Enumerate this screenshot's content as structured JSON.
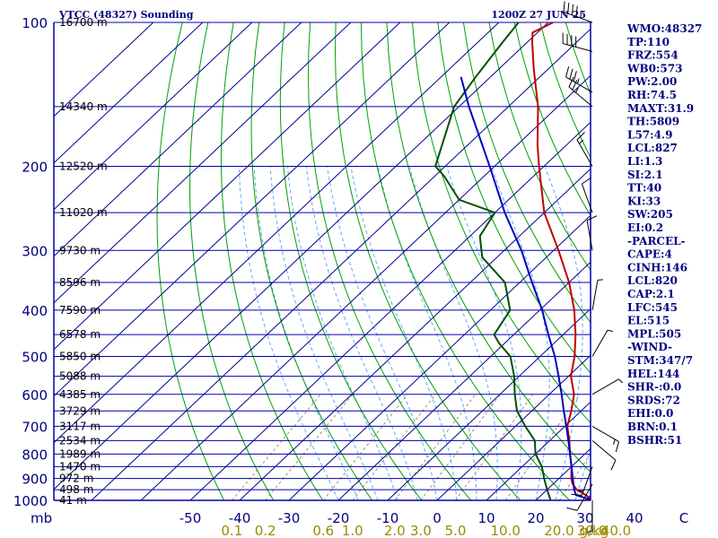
{
  "header": {
    "title": "VTCC (48327) Sounding",
    "datetime": "1200Z 27 JUN 25"
  },
  "colors": {
    "isobar": "#0000a8",
    "isotherm": "#00008c",
    "dry_adiabat": "#00a000",
    "moist_adiabat": "#5fa8ff",
    "mixing_ratio": "#a08e6e",
    "temperature": "#c00000",
    "dewpoint": "#005000",
    "parcel": "#0000c0",
    "label_yellow": "#9a8a00",
    "text_blue": "#000080"
  },
  "chart_data": {
    "type": "line",
    "kind": "skew-T log-P sounding",
    "pressure_levels": [
      {
        "p": 100,
        "height": "16700 m"
      },
      {
        "p": 150,
        "height": "14340 m"
      },
      {
        "p": 200,
        "height": "12520 m"
      },
      {
        "p": 250,
        "height": "11020 m"
      },
      {
        "p": 300,
        "height": "9730 m"
      },
      {
        "p": 350,
        "height": "8596 m"
      },
      {
        "p": 400,
        "height": "7590 m"
      },
      {
        "p": 450,
        "height": "6578 m"
      },
      {
        "p": 500,
        "height": "5850 m"
      },
      {
        "p": 550,
        "height": "5088 m"
      },
      {
        "p": 600,
        "height": "4385 m"
      },
      {
        "p": 650,
        "height": "3729 m"
      },
      {
        "p": 700,
        "height": "3117 m"
      },
      {
        "p": 750,
        "height": "2534 m"
      },
      {
        "p": 800,
        "height": "1989 m"
      },
      {
        "p": 850,
        "height": "1470 m"
      },
      {
        "p": 900,
        "height": "972 m"
      },
      {
        "p": 950,
        "height": "498 m"
      },
      {
        "p": 1000,
        "height": "41 m"
      }
    ],
    "pressure_axis_labels": [
      "100",
      "200",
      "300",
      "400",
      "500",
      "600",
      "700",
      "800",
      "900",
      "1000"
    ],
    "x_axis_prefix": "mb",
    "temperature_ticks": [
      "-50",
      "-40",
      "-30",
      "-20",
      "-10",
      "0",
      "10",
      "20",
      "30",
      "40",
      "C"
    ],
    "mixing_ratio_ticks": [
      "0.1",
      "0.2",
      "0.6",
      "1.0",
      "2.0",
      "3.0",
      "5.0",
      "10.0",
      "20.0",
      "30.0",
      "40.0",
      "g/kg"
    ],
    "mixing_ratio_values": [
      0.1,
      0.2,
      0.6,
      1.0,
      2.0,
      3.0,
      5.0,
      10.0,
      20.0,
      30.0,
      40.0
    ],
    "series": [
      {
        "name": "temperature",
        "points": [
          [
            1000,
            31.5
          ],
          [
            975,
            29
          ],
          [
            950,
            26
          ],
          [
            925,
            24
          ],
          [
            900,
            22.5
          ],
          [
            850,
            20
          ],
          [
            800,
            17
          ],
          [
            750,
            14
          ],
          [
            700,
            10.5
          ],
          [
            650,
            8
          ],
          [
            600,
            5
          ],
          [
            550,
            0.5
          ],
          [
            500,
            -3
          ],
          [
            450,
            -7.5
          ],
          [
            400,
            -13
          ],
          [
            350,
            -20
          ],
          [
            300,
            -29
          ],
          [
            250,
            -40
          ],
          [
            200,
            -51
          ],
          [
            180,
            -56
          ],
          [
            150,
            -64
          ],
          [
            125,
            -73
          ],
          [
            110,
            -79
          ],
          [
            105,
            -81
          ],
          [
            100,
            -79
          ]
        ]
      },
      {
        "name": "dewpoint",
        "points": [
          [
            1000,
            23
          ],
          [
            950,
            20
          ],
          [
            900,
            17
          ],
          [
            850,
            14
          ],
          [
            800,
            10
          ],
          [
            750,
            7
          ],
          [
            700,
            2
          ],
          [
            650,
            -3
          ],
          [
            600,
            -7
          ],
          [
            550,
            -11
          ],
          [
            500,
            -16
          ],
          [
            470,
            -21
          ],
          [
            450,
            -24
          ],
          [
            400,
            -26
          ],
          [
            350,
            -33
          ],
          [
            310,
            -43
          ],
          [
            280,
            -48
          ],
          [
            250,
            -50
          ],
          [
            235,
            -60
          ],
          [
            210,
            -68
          ],
          [
            200,
            -72
          ],
          [
            150,
            -81
          ],
          [
            130,
            -83
          ],
          [
            110,
            -85
          ],
          [
            100,
            -86
          ]
        ]
      },
      {
        "name": "parcel",
        "points": [
          [
            1000,
            31.5
          ],
          [
            975,
            27
          ],
          [
            950,
            25.5
          ],
          [
            900,
            22.8
          ],
          [
            850,
            20
          ],
          [
            800,
            17
          ],
          [
            750,
            13.8
          ],
          [
            700,
            10.3
          ],
          [
            650,
            6.5
          ],
          [
            600,
            2.5
          ],
          [
            550,
            -2
          ],
          [
            500,
            -7
          ],
          [
            450,
            -13
          ],
          [
            400,
            -19.5
          ],
          [
            350,
            -27.5
          ],
          [
            300,
            -36.5
          ],
          [
            250,
            -48
          ],
          [
            200,
            -61
          ],
          [
            150,
            -78
          ],
          [
            130,
            -86
          ]
        ]
      }
    ],
    "wind_barbs": [
      {
        "p": 100,
        "dir": 290,
        "speed": 45
      },
      {
        "p": 115,
        "dir": 285,
        "speed": 40
      },
      {
        "p": 140,
        "dir": 300,
        "speed": 35
      },
      {
        "p": 150,
        "dir": 310,
        "speed": 25
      },
      {
        "p": 200,
        "dir": 330,
        "speed": 15
      },
      {
        "p": 250,
        "dir": 340,
        "speed": 10
      },
      {
        "p": 300,
        "dir": 350,
        "speed": 10
      },
      {
        "p": 400,
        "dir": 10,
        "speed": 5
      },
      {
        "p": 500,
        "dir": 30,
        "speed": 5
      },
      {
        "p": 600,
        "dir": 60,
        "speed": 5
      },
      {
        "p": 700,
        "dir": 120,
        "speed": 15
      },
      {
        "p": 750,
        "dir": 130,
        "speed": 10
      },
      {
        "p": 850,
        "dir": 200,
        "speed": 15
      },
      {
        "p": 925,
        "dir": 210,
        "speed": 10
      },
      {
        "p": 1000,
        "dir": 180,
        "speed": 5
      }
    ]
  },
  "indices": [
    "WMO:48327",
    "TP:110",
    "FRZ:554",
    "WB0:573",
    "PW:2.00",
    "RH:74.5",
    "MAXT:31.9",
    "TH:5809",
    "L57:4.9",
    "LCL:827",
    "LI:1.3",
    "SI:2.1",
    "TT:40",
    "KI:33",
    "SW:205",
    "EI:0.2",
    "-PARCEL-",
    "CAPE:4",
    "CINH:146",
    "LCL:820",
    "CAP:2.1",
    "LFC:545",
    "EL:515",
    "MPL:505",
    "-WIND-",
    "STM:347/7",
    "HEL:144",
    "SHR-:0.0",
    "SRDS:72",
    "EHI:0.0",
    "BRN:0.1",
    "BSHR:51"
  ]
}
